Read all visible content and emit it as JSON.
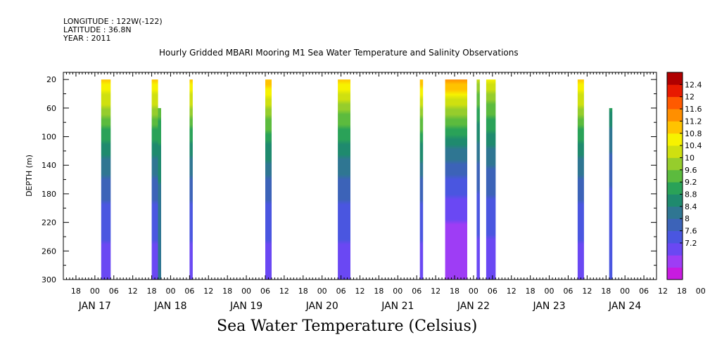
{
  "header": {
    "longitude": "LONGITUDE : 122W(-122)",
    "latitude": "LATITUDE : 36.8N",
    "year": "YEAR : 2011"
  },
  "chart_data": {
    "type": "heatmap",
    "title": "Hourly Gridded MBARI Mooring M1 Sea Water Temperature and Salinity Observations",
    "variable_label": "Sea Water Temperature (Celsius)",
    "ylabel": "DEPTH (m)",
    "ylim": [
      300,
      10
    ],
    "y_reversed": true,
    "yticks": [
      20,
      60,
      100,
      140,
      180,
      220,
      260,
      300
    ],
    "x_hour_ticks": [
      "18",
      "00",
      "06",
      "12",
      "18",
      "00",
      "06",
      "12",
      "18",
      "00",
      "06",
      "12",
      "18",
      "00",
      "06",
      "12",
      "18",
      "00",
      "06",
      "12",
      "18",
      "00",
      "06",
      "12",
      "18",
      "00",
      "06",
      "12",
      "18",
      "00",
      "06",
      "12",
      "18",
      "00",
      "06",
      "12"
    ],
    "x_day_labels": [
      "JAN 17",
      "JAN 18",
      "JAN 19",
      "JAN 20",
      "JAN 21",
      "JAN 22",
      "JAN 23",
      "JAN 24"
    ],
    "xlim_hours": [
      -10,
      178
    ],
    "colorbar": {
      "levels": [
        7.2,
        7.6,
        8,
        8.4,
        8.8,
        9.2,
        9.6,
        10,
        10.4,
        10.8,
        11.2,
        11.6,
        12,
        12.4
      ],
      "labels": [
        "12.4",
        "12",
        "11.6",
        "11.2",
        "10.8",
        "10.4",
        "10",
        "9.6",
        "9.2",
        "8.8",
        "8.4",
        "8",
        "7.6",
        "7.2"
      ],
      "colors": [
        "#c81be0",
        "#9e3df5",
        "#6a48f3",
        "#4a56e0",
        "#3c63b8",
        "#2f7692",
        "#1f8a6e",
        "#2aa258",
        "#5cbb3e",
        "#96cd2c",
        "#cfe010",
        "#f7f200",
        "#ffc300",
        "#ff8f00",
        "#ff5a00",
        "#e81a00",
        "#b00000"
      ]
    },
    "observation_windows": [
      {
        "start_hour": 2,
        "end_hour": 5,
        "top_depth": 20,
        "surface_temp": 11.8,
        "bottom_temp": 7.9
      },
      {
        "start_hour": 18,
        "end_hour": 20,
        "top_depth": 20,
        "surface_temp": 11.8,
        "bottom_temp": 7.9
      },
      {
        "start_hour": 20,
        "end_hour": 21,
        "top_depth": 60,
        "surface_temp": 10.2,
        "bottom_temp": 8.8
      },
      {
        "start_hour": 30,
        "end_hour": 31,
        "top_depth": 20,
        "surface_temp": 11.8,
        "bottom_temp": 7.9
      },
      {
        "start_hour": 54,
        "end_hour": 56,
        "top_depth": 20,
        "surface_temp": 11.9,
        "bottom_temp": 7.9
      },
      {
        "start_hour": 77,
        "end_hour": 81,
        "top_depth": 20,
        "surface_temp": 11.7,
        "bottom_temp": 7.9
      },
      {
        "start_hour": 103,
        "end_hour": 104,
        "top_depth": 20,
        "surface_temp": 11.9,
        "bottom_temp": 7.9
      },
      {
        "start_hour": 111,
        "end_hour": 118,
        "top_depth": 20,
        "surface_temp": 12.2,
        "bottom_temp": 7.3
      },
      {
        "start_hour": 121,
        "end_hour": 122,
        "top_depth": 20,
        "surface_temp": 10.8,
        "bottom_temp": 7.9
      },
      {
        "start_hour": 124,
        "end_hour": 127,
        "top_depth": 20,
        "surface_temp": 11.2,
        "bottom_temp": 7.9
      },
      {
        "start_hour": 153,
        "end_hour": 155,
        "top_depth": 20,
        "surface_temp": 11.8,
        "bottom_temp": 7.9
      },
      {
        "start_hour": 163,
        "end_hour": 164,
        "top_depth": 60,
        "surface_temp": 9.6,
        "bottom_temp": 8.0
      }
    ]
  }
}
